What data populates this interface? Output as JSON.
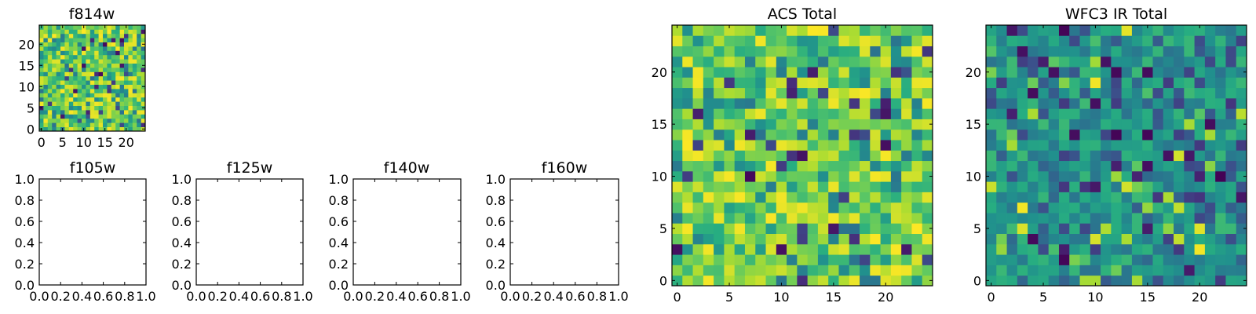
{
  "figure": {
    "colormap": "viridis",
    "note_titles": [
      "f814w",
      "f105w",
      "f125w",
      "f140w",
      "f160w",
      "ACS Total",
      "WFC3 IR Total"
    ]
  },
  "chart_data": [
    {
      "id": "f814w",
      "type": "heatmap",
      "title": "f814w",
      "xlabel": "",
      "ylabel": "",
      "xlim": [
        -0.5,
        24.5
      ],
      "ylim": [
        -0.5,
        24.5
      ],
      "xticks": [
        0,
        5,
        10,
        15,
        20
      ],
      "xtick_labels": [
        "0",
        "5",
        "10",
        "15",
        "20"
      ],
      "yticks": [
        0,
        5,
        10,
        15,
        20
      ],
      "ytick_labels": [
        "0",
        "5",
        "10",
        "15",
        "20"
      ],
      "grid": false,
      "origin": "lower",
      "shape": [
        25,
        25
      ],
      "value_range": [
        0,
        1
      ],
      "style": "bright",
      "seed": 814
    },
    {
      "id": "f105w",
      "type": "empty",
      "title": "f105w",
      "xlim": [
        0,
        1
      ],
      "ylim": [
        0,
        1
      ],
      "xticks": [
        0,
        0.2,
        0.4,
        0.6,
        0.8,
        1.0
      ],
      "xtick_labels": [
        "0.0",
        "0.2",
        "0.4",
        "0.6",
        "0.8",
        "1.0"
      ],
      "yticks": [
        0,
        0.2,
        0.4,
        0.6,
        0.8,
        1.0
      ],
      "ytick_labels": [
        "0.0",
        "0.2",
        "0.4",
        "0.6",
        "0.8",
        "1.0"
      ],
      "grid": false
    },
    {
      "id": "f125w",
      "type": "empty",
      "title": "f125w",
      "xlim": [
        0,
        1
      ],
      "ylim": [
        0,
        1
      ],
      "xticks": [
        0,
        0.2,
        0.4,
        0.6,
        0.8,
        1.0
      ],
      "xtick_labels": [
        "0.0",
        "0.2",
        "0.4",
        "0.6",
        "0.8",
        "1.0"
      ],
      "yticks": [
        0,
        0.2,
        0.4,
        0.6,
        0.8,
        1.0
      ],
      "ytick_labels": [
        "0.0",
        "0.2",
        "0.4",
        "0.6",
        "0.8",
        "1.0"
      ],
      "grid": false
    },
    {
      "id": "f140w",
      "type": "empty",
      "title": "f140w",
      "xlim": [
        0,
        1
      ],
      "ylim": [
        0,
        1
      ],
      "xticks": [
        0,
        0.2,
        0.4,
        0.6,
        0.8,
        1.0
      ],
      "xtick_labels": [
        "0.0",
        "0.2",
        "0.4",
        "0.6",
        "0.8",
        "1.0"
      ],
      "yticks": [
        0,
        0.2,
        0.4,
        0.6,
        0.8,
        1.0
      ],
      "ytick_labels": [
        "0.0",
        "0.2",
        "0.4",
        "0.6",
        "0.8",
        "1.0"
      ],
      "grid": false
    },
    {
      "id": "f160w",
      "type": "empty",
      "title": "f160w",
      "xlim": [
        0,
        1
      ],
      "ylim": [
        0,
        1
      ],
      "xticks": [
        0,
        0.2,
        0.4,
        0.6,
        0.8,
        1.0
      ],
      "xtick_labels": [
        "0.0",
        "0.2",
        "0.4",
        "0.6",
        "0.8",
        "1.0"
      ],
      "yticks": [
        0,
        0.2,
        0.4,
        0.6,
        0.8,
        1.0
      ],
      "ytick_labels": [
        "0.0",
        "0.2",
        "0.4",
        "0.6",
        "0.8",
        "1.0"
      ],
      "grid": false
    },
    {
      "id": "acs-total",
      "type": "heatmap",
      "title": "ACS Total",
      "xlabel": "",
      "ylabel": "",
      "xlim": [
        -0.5,
        24.5
      ],
      "ylim": [
        -0.5,
        24.5
      ],
      "xticks": [
        0,
        5,
        10,
        15,
        20
      ],
      "xtick_labels": [
        "0",
        "5",
        "10",
        "15",
        "20"
      ],
      "yticks": [
        0,
        5,
        10,
        15,
        20
      ],
      "ytick_labels": [
        "0",
        "5",
        "10",
        "15",
        "20"
      ],
      "grid": false,
      "origin": "lower",
      "shape": [
        25,
        25
      ],
      "value_range": [
        0,
        1
      ],
      "style": "bright",
      "seed": 4242
    },
    {
      "id": "wfc3-ir-total",
      "type": "heatmap",
      "title": "WFC3 IR Total",
      "xlabel": "",
      "ylabel": "",
      "xlim": [
        -0.5,
        24.5
      ],
      "ylim": [
        -0.5,
        24.5
      ],
      "xticks": [
        0,
        5,
        10,
        15,
        20
      ],
      "xtick_labels": [
        "0",
        "5",
        "10",
        "15",
        "20"
      ],
      "yticks": [
        0,
        5,
        10,
        15,
        20
      ],
      "ytick_labels": [
        "0",
        "5",
        "10",
        "15",
        "20"
      ],
      "grid": false,
      "origin": "lower",
      "shape": [
        25,
        25
      ],
      "value_range": [
        0,
        1
      ],
      "style": "mid",
      "seed": 9001
    }
  ]
}
